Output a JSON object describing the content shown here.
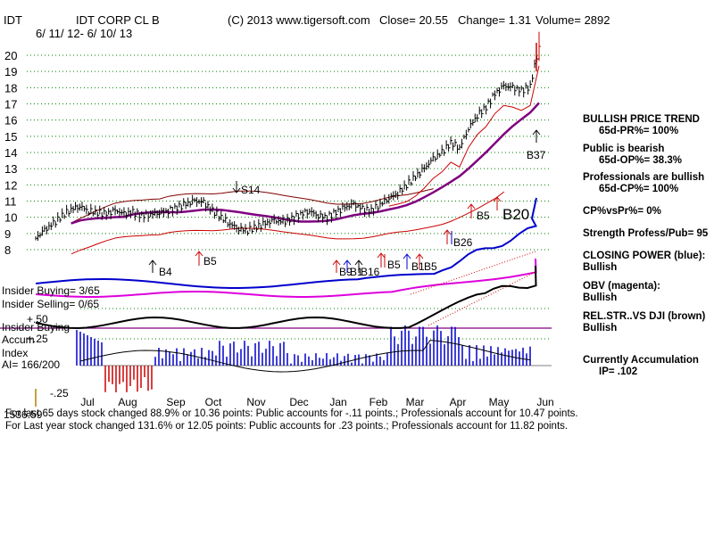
{
  "header": {
    "ticker": "IDT",
    "company": "IDT CORP CL B",
    "date_range": "6/ 11/ 12- 6/ 10/ 13",
    "copyright": "(C) 2013 www.tigersoft.com",
    "close": "Close=  20.55",
    "change": "Change= 1.31",
    "volume": "Volume= 2892"
  },
  "chart_data": {
    "type": "line",
    "title": "IDT CORP CL B",
    "x_tick_labels": [
      "Jul",
      "Aug",
      "Sep",
      "Oct",
      "Nov",
      "Dec",
      "Jan",
      "Feb",
      "Mar",
      "Apr",
      "May",
      "Jun"
    ],
    "y_tick_labels": [
      "20",
      "19",
      "18",
      "17",
      "16",
      "15",
      "14",
      "13",
      "12",
      "11",
      "10",
      "9",
      "8"
    ],
    "ylim": [
      8,
      20
    ],
    "price_series": {
      "name": "Close",
      "values": [
        8.7,
        9.2,
        9.6,
        10.1,
        10.5,
        10.7,
        10.4,
        10.3,
        10.2,
        10.4,
        10.2,
        10.3,
        10.1,
        10.2,
        10.3,
        10.4,
        10.6,
        10.8,
        11.0,
        10.9,
        10.4,
        10.0,
        9.6,
        9.3,
        9.2,
        9.4,
        9.6,
        9.8,
        9.7,
        9.9,
        10.2,
        10.4,
        10.1,
        10.0,
        10.3,
        10.6,
        10.8,
        10.5,
        10.4,
        10.8,
        11.2,
        11.5,
        12.0,
        12.5,
        13.0,
        13.6,
        14.0,
        14.6,
        14.3,
        15.5,
        16.3,
        16.8,
        17.6,
        18.1,
        18.0,
        17.8,
        18.1,
        20.55
      ]
    },
    "indicator_labels": {
      "insider_buying_top": "Insider Buying= 3/65",
      "insider_selling": "Insider Selling= 0/65",
      "insider_buying_mid": "Insider Buying",
      "accum": "Accum",
      "index": "Index",
      "ai": "AI= 166/200",
      "plus50": "+.50",
      "plus25": "+.25",
      "minus25": "-.25",
      "stray_num": "1536.59"
    },
    "signals": [
      "B4",
      "B5",
      "S14",
      "B9",
      "B1",
      "B16",
      "B5",
      "B1",
      "B5",
      "B26",
      "B5",
      "B20",
      "B37"
    ]
  },
  "right_panel": {
    "trend_title": "BULLISH PRICE TREND",
    "pr": "65d-PR%= 100%",
    "public_title": "Public is bearish",
    "op": "65d-OP%= 38.3%",
    "pros_title": "Professionals are bullish",
    "cp": "65d-CP%= 100%",
    "cpvspr": "CP%vsPr%=  0%",
    "strength": "Strength Profess/Pub= 95",
    "closing_power_title": "CLOSING POWER (blue):",
    "closing_power_value": "Bullish",
    "obv_title": "OBV (magenta):",
    "obv_value": "Bullish",
    "relstr_title": "REL.STR..VS DJI (brown)",
    "relstr_value": "Bullish",
    "accum_title": "Currently Accumulation",
    "ip": "IP=  .102"
  },
  "footer": {
    "line1": "For last 65 days stock changed  88.9% or  10.36 points:  Public accounts for -.11 points.;  Professionals account for  10.47 points.",
    "line2": "For Last year stock changed  131.6% or  12.05 points:  Public accounts for  .23 points.;  Professionals account for  11.82 points."
  },
  "colors": {
    "price": "#000000",
    "bands": "#cc0000",
    "envelope": "#800000",
    "ma": "#800080",
    "closing_power": "#0000cc",
    "obv": "#dd00dd",
    "relstr": "#000000",
    "accum_pos": "#0000cc",
    "accum_neg": "#cc0000",
    "grid": "#008000",
    "baseline": "#800080"
  }
}
